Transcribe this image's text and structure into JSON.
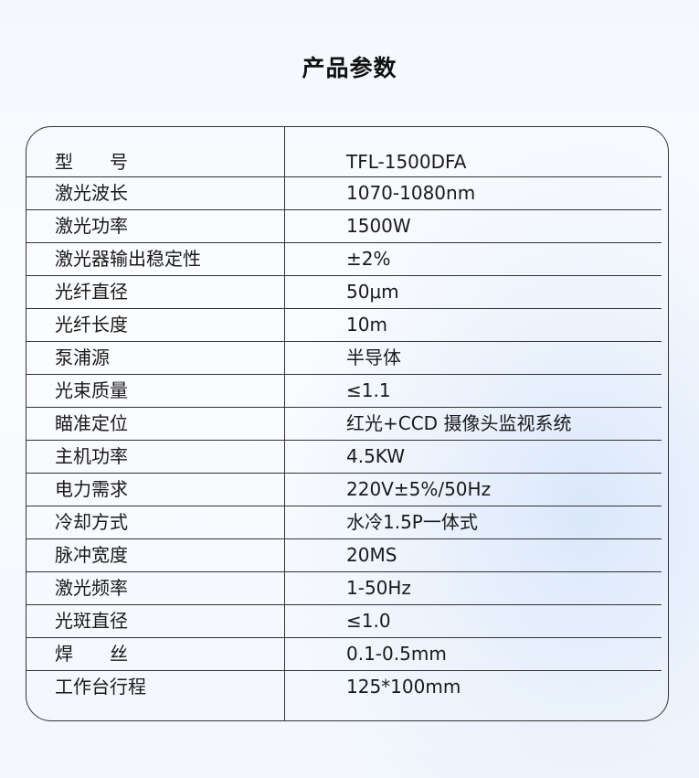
{
  "title": "产品参数",
  "specs": [
    {
      "label": "型　　号",
      "value": "TFL-1500DFA"
    },
    {
      "label": "激光波长",
      "value": "1070-1080nm"
    },
    {
      "label": "激光功率",
      "value": "1500W"
    },
    {
      "label": "激光器输出稳定性",
      "value": "±2%"
    },
    {
      "label": "光纤直径",
      "value": "50μm"
    },
    {
      "label": "光纤长度",
      "value": "10m"
    },
    {
      "label": "泵浦源",
      "value": "半导体"
    },
    {
      "label": "光束质量",
      "value": "≤1.1"
    },
    {
      "label": "瞄准定位",
      "value": "红光+CCD 摄像头监视系统"
    },
    {
      "label": "主机功率",
      "value": "4.5KW"
    },
    {
      "label": "电力需求",
      "value": "220V±5%/50Hz"
    },
    {
      "label": "冷却方式",
      "value": "水冷1.5P一体式"
    },
    {
      "label": "脉冲宽度",
      "value": "20MS"
    },
    {
      "label": "激光频率",
      "value": "1-50Hz"
    },
    {
      "label": "光斑直径",
      "value": "≤1.0"
    },
    {
      "label": "焊　　丝",
      "value": "0.1-0.5mm"
    },
    {
      "label": "工作台行程",
      "value": "125*100mm"
    }
  ]
}
